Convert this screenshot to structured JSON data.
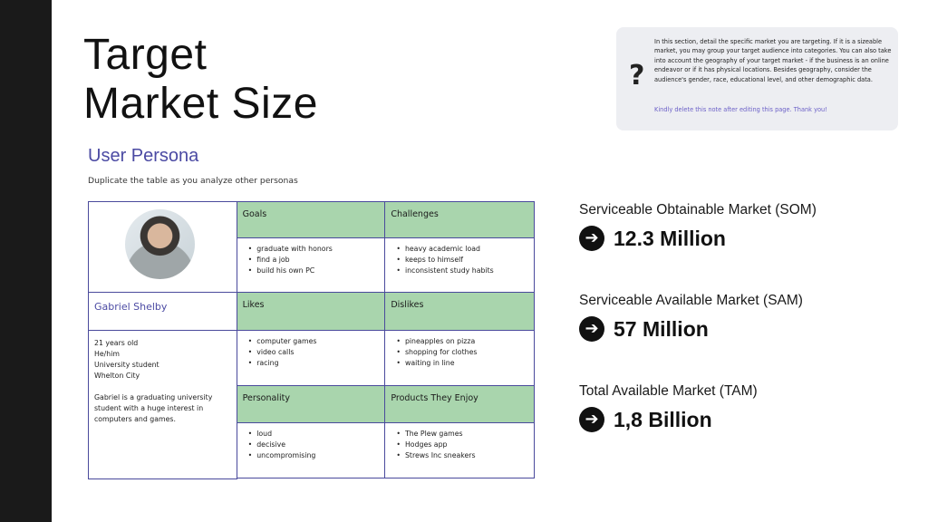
{
  "page": {
    "title_line1": "Target",
    "title_line2": "Market Size"
  },
  "note": {
    "icon": "question-mark-icon",
    "text": "In this section, detail the specific market you are targeting. If it is a sizeable market, you may group your target audience into categories. You can also take into account the geography of your target market - if the business is an online endeavor or if it has physical locations. Besides geography, consider the audience's gender, race, educational level, and other demographic data.",
    "delete_text": "Kindly delete this note after editing this page. Thank you!"
  },
  "persona": {
    "heading": "User Persona",
    "subheading": "Duplicate the table as you analyze other personas",
    "name": "Gabriel Shelby",
    "bio_lines": [
      "21 years old",
      "He/him",
      "University student",
      "Whelton City"
    ],
    "description": "Gabriel is a graduating university student with a huge interest in computers and games.",
    "goals": {
      "label": "Goals",
      "items": [
        "graduate with honors",
        "find a job",
        "build his own PC"
      ]
    },
    "challenges": {
      "label": "Challenges",
      "items": [
        "heavy academic load",
        "keeps to himself",
        "inconsistent study habits"
      ]
    },
    "likes": {
      "label": "Likes",
      "items": [
        "computer games",
        "video calls",
        "racing"
      ]
    },
    "dislikes": {
      "label": "Dislikes",
      "items": [
        "pineapples on pizza",
        "shopping for clothes",
        "waiting in line"
      ]
    },
    "personality": {
      "label": "Personality",
      "items": [
        "loud",
        "decisive",
        "uncompromising"
      ]
    },
    "products": {
      "label": "Products They Enjoy",
      "items": [
        "The Plew games",
        "Hodges app",
        "Strews Inc sneakers"
      ]
    }
  },
  "market": {
    "som": {
      "label": "Serviceable Obtainable Market (SOM)",
      "value": "12.3 Million"
    },
    "sam": {
      "label": "Serviceable Available Market (SAM)",
      "value": "57 Million"
    },
    "tam": {
      "label": "Total Available Market (TAM)",
      "value": "1,8 Billion"
    }
  },
  "colors": {
    "accent": "#4b4aa3",
    "header_green": "#a9d5ad",
    "sidebar": "#1a1a1a",
    "note_bg": "#edeef2"
  }
}
